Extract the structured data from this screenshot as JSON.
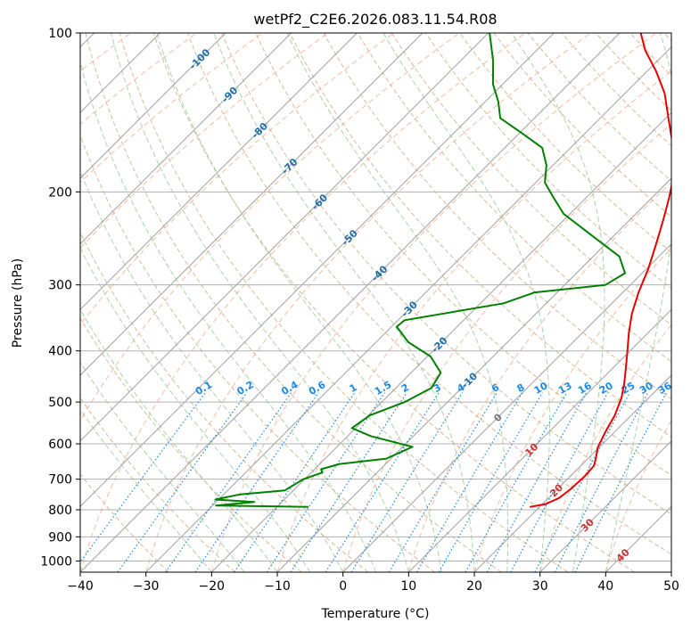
{
  "chart_data": {
    "type": "line",
    "title": "wetPf2_C2E6.2026.083.11.54.R08",
    "xlabel": "Temperature (°C)",
    "ylabel": "Pressure (hPa)",
    "xlim": [
      -40,
      50
    ],
    "ylim": [
      1050,
      100
    ],
    "yscale": "log",
    "skew": true,
    "grid": true,
    "x_ticks": [
      -40,
      -30,
      -20,
      -10,
      0,
      10,
      20,
      30,
      40,
      50
    ],
    "y_ticks": [
      100,
      200,
      300,
      400,
      500,
      600,
      700,
      800,
      900,
      1000
    ],
    "colors": {
      "temperature": "#e60000",
      "dewpoint": "#008000",
      "dry_adiabats": "#d2b48c",
      "moist_adiabats": "#9fd09f",
      "mixing_ratio": "#1e88e5",
      "isotherm_labels_negative": "#1f6fa8",
      "isotherm_labels_positive": "#d32f2f",
      "isotherm_label_zero": "#777777",
      "dashed_lines": "#f4a582"
    },
    "series": [
      {
        "key": "temperature",
        "points": [
          [
            18.5,
            790
          ],
          [
            20.5,
            780
          ],
          [
            21.6,
            760
          ],
          [
            22.0,
            730
          ],
          [
            22.2,
            690
          ],
          [
            22.0,
            660
          ],
          [
            21.2,
            640
          ],
          [
            19.8,
            610
          ],
          [
            18.6,
            570
          ],
          [
            17.5,
            530
          ],
          [
            15.8,
            490
          ],
          [
            14.0,
            460
          ],
          [
            11.9,
            430
          ],
          [
            9.6,
            400
          ],
          [
            7.1,
            370
          ],
          [
            4.6,
            340
          ],
          [
            2.4,
            310
          ],
          [
            0.3,
            280
          ],
          [
            -2.4,
            250
          ],
          [
            -5.0,
            225
          ],
          [
            -7.4,
            205
          ],
          [
            -9.5,
            190
          ],
          [
            -12.4,
            175
          ],
          [
            -15.6,
            160
          ],
          [
            -19.6,
            145
          ],
          [
            -24.0,
            130
          ],
          [
            -28.7,
            118
          ],
          [
            -33.4,
            108
          ],
          [
            -36.8,
            100
          ]
        ]
      },
      {
        "key": "dewpoint",
        "points": [
          [
            -15.2,
            790
          ],
          [
            -29.5,
            785
          ],
          [
            -24.2,
            773
          ],
          [
            -30.5,
            765
          ],
          [
            -27.5,
            748
          ],
          [
            -21.3,
            735
          ],
          [
            -20.2,
            700
          ],
          [
            -18.3,
            680
          ],
          [
            -19.0,
            670
          ],
          [
            -17.0,
            655
          ],
          [
            -10.7,
            640
          ],
          [
            -8.5,
            608
          ],
          [
            -16.5,
            580
          ],
          [
            -20.6,
            560
          ],
          [
            -19.8,
            530
          ],
          [
            -16.5,
            500
          ],
          [
            -14.6,
            470
          ],
          [
            -15.5,
            440
          ],
          [
            -19.5,
            410
          ],
          [
            -25.1,
            385
          ],
          [
            -29.2,
            360
          ],
          [
            -29.0,
            350
          ],
          [
            -16.5,
            325
          ],
          [
            -13.4,
            310
          ],
          [
            -3.8,
            300
          ],
          [
            -2.6,
            285
          ],
          [
            -6.0,
            265
          ],
          [
            -14.0,
            240
          ],
          [
            -21.0,
            220
          ],
          [
            -25.0,
            205
          ],
          [
            -28.6,
            192
          ],
          [
            -31.0,
            178
          ],
          [
            -34.3,
            165
          ],
          [
            -39.5,
            155
          ],
          [
            -45.2,
            145
          ],
          [
            -48.0,
            135
          ],
          [
            -51.5,
            125
          ],
          [
            -55.0,
            113
          ],
          [
            -59.8,
            100
          ]
        ]
      }
    ],
    "isotherm_labels": [
      {
        "text": "-100",
        "value": -100
      },
      {
        "text": "-90",
        "value": -90
      },
      {
        "text": "-80",
        "value": -80
      },
      {
        "text": "-70",
        "value": -70
      },
      {
        "text": "-60",
        "value": -60
      },
      {
        "text": "-50",
        "value": -50
      },
      {
        "text": "-40",
        "value": -40
      },
      {
        "text": "-30",
        "value": -30
      },
      {
        "text": "-20",
        "value": -20
      },
      {
        "text": "-10",
        "value": -10
      },
      {
        "text": "0",
        "value": 0
      },
      {
        "text": "10",
        "value": 10
      },
      {
        "text": "20",
        "value": 20
      },
      {
        "text": "30",
        "value": 30
      },
      {
        "text": "40",
        "value": 40
      }
    ],
    "mixing_ratio_labels": [
      {
        "text": "0.1",
        "value": 0.1
      },
      {
        "text": "0.2",
        "value": 0.2
      },
      {
        "text": "0.4",
        "value": 0.4
      },
      {
        "text": "0.6",
        "value": 0.6
      },
      {
        "text": "1",
        "value": 1
      },
      {
        "text": "1.5",
        "value": 1.5
      },
      {
        "text": "2",
        "value": 2
      },
      {
        "text": "3",
        "value": 3
      },
      {
        "text": "4",
        "value": 4
      },
      {
        "text": "6",
        "value": 6
      },
      {
        "text": "8",
        "value": 8
      },
      {
        "text": "10",
        "value": 10
      },
      {
        "text": "13",
        "value": 13
      },
      {
        "text": "16",
        "value": 16
      },
      {
        "text": "20",
        "value": 20
      },
      {
        "text": "25",
        "value": 25
      },
      {
        "text": "30",
        "value": 30
      },
      {
        "text": "36",
        "value": 36
      }
    ]
  }
}
